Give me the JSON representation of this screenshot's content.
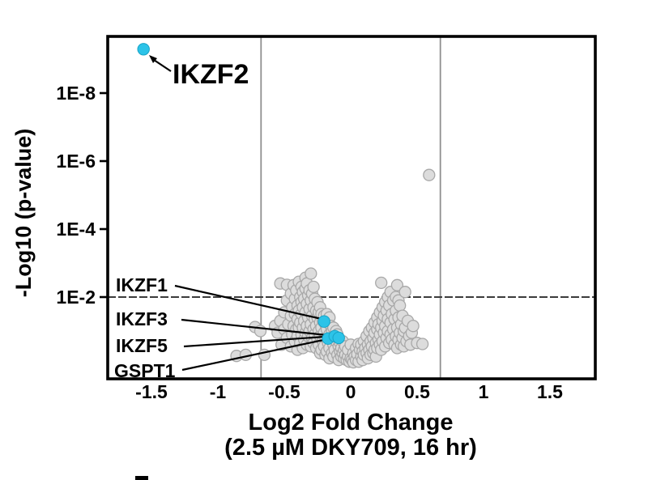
{
  "figure": {
    "background": "#ffffff",
    "accent_color": "#2cc3e8",
    "accent_stroke": "#17a3c6",
    "point_fill": "#dcdcdc",
    "point_stroke": "#a8a8a8",
    "frame_color": "#000000",
    "gridline_color": "#8f8f8f",
    "threshold_line_color": "#3c3c3c"
  },
  "chart_data": {
    "type": "scatter",
    "subtype": "volcano",
    "title": "",
    "xlabel_line1": "Log2 Fold Change",
    "xlabel_line2": "(2.5 µM DKY709, 16 hr)",
    "ylabel": "-Log10 (p-value)",
    "legend": "none",
    "grid": "threshold lines only",
    "x_range": [
      -1.83,
      1.84
    ],
    "y_range_neg_log10_p": [
      -0.41,
      9.68
    ],
    "x_ticks": [
      {
        "label": "-1.5",
        "value": -1.5
      },
      {
        "label": "-1",
        "value": -1.0
      },
      {
        "label": "-0.5",
        "value": -0.5
      },
      {
        "label": "0",
        "value": 0.0
      },
      {
        "label": "0.5",
        "value": 0.5
      },
      {
        "label": "1",
        "value": 1.0
      },
      {
        "label": "1.5",
        "value": 1.5
      }
    ],
    "y_ticks": [
      {
        "label": "1E-8",
        "neg_log10_p": 8
      },
      {
        "label": "1E-6",
        "neg_log10_p": 6
      },
      {
        "label": "1E-4",
        "neg_log10_p": 4
      },
      {
        "label": "1E-2",
        "neg_log10_p": 2
      }
    ],
    "threshold_lines": {
      "vertical_x": [
        -0.675,
        0.675
      ],
      "horizontal_neg_log10_p": 2
    },
    "highlighted_points": [
      {
        "label": "IKZF2",
        "x": -1.56,
        "neg_log10_p": 9.29
      },
      {
        "label": "IKZF1",
        "x": -0.2,
        "neg_log10_p": 1.28
      },
      {
        "label": "IKZF3",
        "x": -0.17,
        "neg_log10_p": 0.78
      },
      {
        "label": "IKZF5",
        "x": -0.12,
        "neg_log10_p": 0.85
      },
      {
        "label": "GSPT1",
        "x": -0.09,
        "neg_log10_p": 0.8
      }
    ],
    "background_points": [
      [
        -0.86,
        0.27
      ],
      [
        -0.79,
        0.3
      ],
      [
        -0.72,
        1.12
      ],
      [
        -0.68,
        1.0
      ],
      [
        -0.65,
        0.3
      ],
      [
        -0.57,
        1.15
      ],
      [
        -0.55,
        0.95
      ],
      [
        -0.53,
        1.3
      ],
      [
        -0.53,
        2.4
      ],
      [
        -0.52,
        0.6
      ],
      [
        -0.5,
        1.05
      ],
      [
        -0.5,
        1.55
      ],
      [
        -0.48,
        0.8
      ],
      [
        -0.48,
        1.9
      ],
      [
        -0.48,
        2.36
      ],
      [
        -0.47,
        1.2
      ],
      [
        -0.45,
        0.55
      ],
      [
        -0.45,
        1.45
      ],
      [
        -0.45,
        2.1
      ],
      [
        -0.44,
        0.9
      ],
      [
        -0.44,
        1.7
      ],
      [
        -0.43,
        1.15
      ],
      [
        -0.43,
        2.35
      ],
      [
        -0.42,
        0.7
      ],
      [
        -0.42,
        1.5
      ],
      [
        -0.42,
        1.95
      ],
      [
        -0.41,
        1.05
      ],
      [
        -0.41,
        2.2
      ],
      [
        -0.4,
        0.45
      ],
      [
        -0.4,
        0.85
      ],
      [
        -0.4,
        1.35
      ],
      [
        -0.4,
        1.75
      ],
      [
        -0.39,
        1.1
      ],
      [
        -0.39,
        1.6
      ],
      [
        -0.39,
        2.45
      ],
      [
        -0.38,
        0.65
      ],
      [
        -0.38,
        1.25
      ],
      [
        -0.38,
        2.0
      ],
      [
        -0.37,
        0.9
      ],
      [
        -0.37,
        1.5
      ],
      [
        -0.37,
        1.85
      ],
      [
        -0.37,
        2.3
      ],
      [
        -0.36,
        0.5
      ],
      [
        -0.36,
        1.1
      ],
      [
        -0.36,
        1.7
      ],
      [
        -0.36,
        2.15
      ],
      [
        -0.35,
        0.75
      ],
      [
        -0.35,
        1.3
      ],
      [
        -0.35,
        1.95
      ],
      [
        -0.34,
        0.95
      ],
      [
        -0.34,
        1.55
      ],
      [
        -0.34,
        2.25
      ],
      [
        -0.34,
        2.57
      ],
      [
        -0.33,
        0.6
      ],
      [
        -0.33,
        1.15
      ],
      [
        -0.33,
        1.8
      ],
      [
        -0.33,
        2.4
      ],
      [
        -0.32,
        0.85
      ],
      [
        -0.32,
        1.4
      ],
      [
        -0.32,
        2.05
      ],
      [
        -0.31,
        1.0
      ],
      [
        -0.31,
        1.65
      ],
      [
        -0.31,
        2.2
      ],
      [
        -0.3,
        0.55
      ],
      [
        -0.3,
        1.2
      ],
      [
        -0.3,
        1.9
      ],
      [
        -0.3,
        2.69
      ],
      [
        -0.29,
        0.8
      ],
      [
        -0.29,
        1.45
      ],
      [
        -0.29,
        2.1
      ],
      [
        -0.28,
        0.65
      ],
      [
        -0.28,
        1.05
      ],
      [
        -0.28,
        1.7
      ],
      [
        -0.28,
        2.3
      ],
      [
        -0.27,
        0.9
      ],
      [
        -0.27,
        1.35
      ],
      [
        -0.27,
        1.95
      ],
      [
        -0.26,
        0.5
      ],
      [
        -0.26,
        1.15
      ],
      [
        -0.26,
        1.6
      ],
      [
        -0.25,
        0.75
      ],
      [
        -0.25,
        1.4
      ],
      [
        -0.25,
        1.85
      ],
      [
        -0.24,
        0.6
      ],
      [
        -0.24,
        1.0
      ],
      [
        -0.24,
        1.55
      ],
      [
        -0.23,
        0.35
      ],
      [
        -0.23,
        0.85
      ],
      [
        -0.23,
        1.25
      ],
      [
        -0.23,
        1.7
      ],
      [
        -0.22,
        0.45
      ],
      [
        -0.22,
        1.1
      ],
      [
        -0.22,
        1.5
      ],
      [
        -0.21,
        0.7
      ],
      [
        -0.21,
        1.3
      ],
      [
        -0.2,
        0.55
      ],
      [
        -0.2,
        0.95
      ],
      [
        -0.2,
        1.45
      ],
      [
        -0.19,
        0.3
      ],
      [
        -0.19,
        0.8
      ],
      [
        -0.19,
        1.2
      ],
      [
        -0.18,
        0.4
      ],
      [
        -0.18,
        1.05
      ],
      [
        -0.18,
        1.5
      ],
      [
        -0.17,
        0.65
      ],
      [
        -0.17,
        1.3
      ],
      [
        -0.16,
        0.2
      ],
      [
        -0.16,
        0.5
      ],
      [
        -0.16,
        0.9
      ],
      [
        -0.16,
        1.4
      ],
      [
        -0.15,
        0.75
      ],
      [
        -0.15,
        1.15
      ],
      [
        -0.14,
        0.35
      ],
      [
        -0.14,
        1.0
      ],
      [
        -0.13,
        0.25
      ],
      [
        -0.13,
        0.6
      ],
      [
        -0.13,
        1.1
      ],
      [
        -0.12,
        0.45
      ],
      [
        -0.12,
        0.85
      ],
      [
        -0.11,
        0.7
      ],
      [
        -0.11,
        1.0
      ],
      [
        -0.1,
        0.3
      ],
      [
        -0.1,
        0.9
      ],
      [
        -0.09,
        0.15
      ],
      [
        -0.09,
        0.55
      ],
      [
        -0.08,
        0.4
      ],
      [
        -0.08,
        0.65
      ],
      [
        -0.07,
        0.25
      ],
      [
        -0.07,
        0.5
      ],
      [
        -0.06,
        0.35
      ],
      [
        -0.06,
        0.7
      ],
      [
        -0.05,
        0.2
      ],
      [
        -0.05,
        0.45
      ],
      [
        -0.04,
        0.3
      ],
      [
        -0.04,
        0.55
      ],
      [
        -0.03,
        0.15
      ],
      [
        -0.02,
        0.25
      ],
      [
        -0.02,
        0.45
      ],
      [
        -0.01,
        0.1
      ],
      [
        0.0,
        0.2
      ],
      [
        0.0,
        0.6
      ],
      [
        0.01,
        0.15
      ],
      [
        0.02,
        0.08
      ],
      [
        0.02,
        0.35
      ],
      [
        0.03,
        0.25
      ],
      [
        0.04,
        0.15
      ],
      [
        0.04,
        0.5
      ],
      [
        0.05,
        0.32
      ],
      [
        0.06,
        0.1
      ],
      [
        0.06,
        0.62
      ],
      [
        0.07,
        0.45
      ],
      [
        0.08,
        0.25
      ],
      [
        0.08,
        0.6
      ],
      [
        0.09,
        0.15
      ],
      [
        0.09,
        0.4
      ],
      [
        0.1,
        0.3
      ],
      [
        0.1,
        0.7
      ],
      [
        0.11,
        0.5
      ],
      [
        0.12,
        0.35
      ],
      [
        0.12,
        0.85
      ],
      [
        0.13,
        0.2
      ],
      [
        0.13,
        0.6
      ],
      [
        0.14,
        0.45
      ],
      [
        0.14,
        1.0
      ],
      [
        0.15,
        0.3
      ],
      [
        0.15,
        0.7
      ],
      [
        0.16,
        0.55
      ],
      [
        0.16,
        1.1
      ],
      [
        0.17,
        0.35
      ],
      [
        0.17,
        0.8
      ],
      [
        0.18,
        0.45
      ],
      [
        0.18,
        0.95
      ],
      [
        0.18,
        1.25
      ],
      [
        0.19,
        0.25
      ],
      [
        0.19,
        0.65
      ],
      [
        0.2,
        0.5
      ],
      [
        0.2,
        1.05
      ],
      [
        0.2,
        1.4
      ],
      [
        0.21,
        0.75
      ],
      [
        0.21,
        1.2
      ],
      [
        0.22,
        0.6
      ],
      [
        0.22,
        0.9
      ],
      [
        0.22,
        1.55
      ],
      [
        0.23,
        0.45
      ],
      [
        0.23,
        1.1
      ],
      [
        0.23,
        2.42
      ],
      [
        0.24,
        0.7
      ],
      [
        0.24,
        1.3
      ],
      [
        0.24,
        1.7
      ],
      [
        0.25,
        0.95
      ],
      [
        0.25,
        1.45
      ],
      [
        0.26,
        0.55
      ],
      [
        0.26,
        1.15
      ],
      [
        0.26,
        1.85
      ],
      [
        0.27,
        0.8
      ],
      [
        0.27,
        1.6
      ],
      [
        0.28,
        1.0
      ],
      [
        0.28,
        1.35
      ],
      [
        0.28,
        2.0
      ],
      [
        0.29,
        0.65
      ],
      [
        0.29,
        1.75
      ],
      [
        0.3,
        0.9
      ],
      [
        0.3,
        1.25
      ],
      [
        0.3,
        2.15
      ],
      [
        0.31,
        0.75
      ],
      [
        0.31,
        1.5
      ],
      [
        0.32,
        1.05
      ],
      [
        0.32,
        1.9
      ],
      [
        0.33,
        0.6
      ],
      [
        0.33,
        1.35
      ],
      [
        0.34,
        0.85
      ],
      [
        0.34,
        1.6
      ],
      [
        0.34,
        2.0
      ],
      [
        0.35,
        0.5
      ],
      [
        0.35,
        1.1
      ],
      [
        0.35,
        2.35
      ],
      [
        0.36,
        0.75
      ],
      [
        0.36,
        1.4
      ],
      [
        0.36,
        1.9
      ],
      [
        0.37,
        0.95
      ],
      [
        0.37,
        1.75
      ],
      [
        0.38,
        0.6
      ],
      [
        0.38,
        1.2
      ],
      [
        0.39,
        0.8
      ],
      [
        0.39,
        1.45
      ],
      [
        0.4,
        0.55
      ],
      [
        0.4,
        1.0
      ],
      [
        0.41,
        1.1
      ],
      [
        0.41,
        2.15
      ],
      [
        0.42,
        0.7
      ],
      [
        0.43,
        1.3
      ],
      [
        0.44,
        0.85
      ],
      [
        0.45,
        0.6
      ],
      [
        0.46,
        0.95
      ],
      [
        0.47,
        1.15
      ],
      [
        0.5,
        0.65
      ],
      [
        0.54,
        0.62
      ],
      [
        0.59,
        5.59
      ]
    ]
  },
  "misc": {
    "cropped_panel_mark": ""
  }
}
